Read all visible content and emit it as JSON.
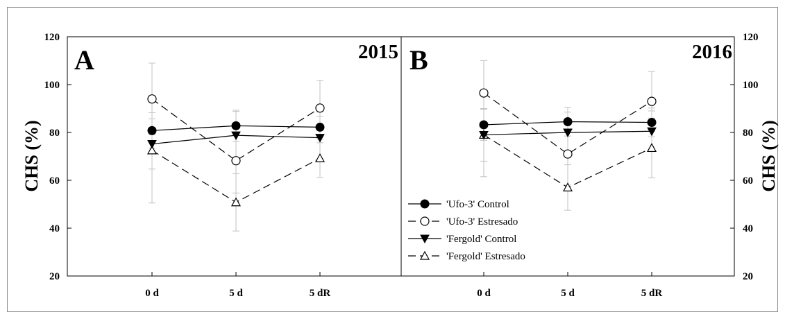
{
  "figure": {
    "y_axis_label": "CHS (%)",
    "y_ticks": [
      20,
      40,
      60,
      80,
      100,
      120
    ],
    "ylim": [
      20,
      120
    ],
    "categories": [
      "0 d",
      "5 d",
      "5 dR"
    ],
    "legend": [
      {
        "series": "ufo_control",
        "label": "'Ufo-3' Control"
      },
      {
        "series": "ufo_stress",
        "label": "'Ufo-3' Estresado"
      },
      {
        "series": "fergold_control",
        "label": "'Fergold' Control"
      },
      {
        "series": "fergold_stress",
        "label": "'Fergold' Estresado"
      }
    ]
  },
  "chart_data": [
    {
      "type": "line",
      "panel": "A",
      "year": "2015",
      "categories": [
        "0 d",
        "5 d",
        "5 dR"
      ],
      "ylabel": "CHS (%)",
      "ylim": [
        20,
        120
      ],
      "y_axis_side": "left",
      "series": [
        {
          "key": "ufo_control",
          "name": "'Ufo-3' Control",
          "marker": "filled-circle",
          "line": "solid",
          "values": [
            80.8,
            82.8,
            82.2
          ],
          "error": [
            7.5,
            6.5,
            6.5
          ]
        },
        {
          "key": "ufo_stress",
          "name": "'Ufo-3' Estresado",
          "marker": "open-circle",
          "line": "dashed",
          "values": [
            94,
            68.2,
            90.2
          ],
          "error": [
            15,
            13.5,
            11.5
          ]
        },
        {
          "key": "fergold_control",
          "name": "'Fergold' Control",
          "marker": "filled-triangle-down",
          "line": "solid",
          "values": [
            75.2,
            78.8,
            77.8
          ],
          "error": [
            10.5,
            10,
            9
          ]
        },
        {
          "key": "fergold_stress",
          "name": "'Fergold' Estresado",
          "marker": "open-triangle-up",
          "line": "dashed",
          "values": [
            72.5,
            50.8,
            69.2
          ],
          "error": [
            22,
            12,
            8
          ]
        }
      ]
    },
    {
      "type": "line",
      "panel": "B",
      "year": "2016",
      "categories": [
        "0 d",
        "5 d",
        "5 dR"
      ],
      "ylabel": "CHS (%)",
      "ylim": [
        20,
        120
      ],
      "y_axis_side": "right",
      "series": [
        {
          "key": "ufo_control",
          "name": "'Ufo-3' Control",
          "marker": "filled-circle",
          "line": "solid",
          "values": [
            83.2,
            84.5,
            84.2
          ],
          "error": [
            6.5,
            6,
            6
          ]
        },
        {
          "key": "ufo_stress",
          "name": "'Ufo-3' Estresado",
          "marker": "open-circle",
          "line": "dashed",
          "values": [
            96.5,
            71,
            93
          ],
          "error": [
            13.5,
            13,
            12.5
          ]
        },
        {
          "key": "fergold_control",
          "name": "'Fergold' Control",
          "marker": "filled-triangle-down",
          "line": "solid",
          "values": [
            79,
            80,
            80.5
          ],
          "error": [
            11,
            8.5,
            8.5
          ]
        },
        {
          "key": "fergold_stress",
          "name": "'Fergold' Estresado",
          "marker": "open-triangle-up",
          "line": "dashed",
          "values": [
            79,
            57,
            73.5
          ],
          "error": [
            17.5,
            9.5,
            12.5
          ]
        }
      ]
    }
  ]
}
